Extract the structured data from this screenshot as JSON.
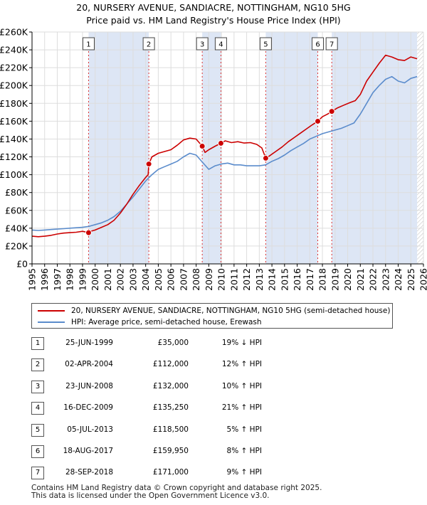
{
  "chart_data": {
    "type": "line",
    "title": [
      "20, NURSERY AVENUE, SANDIACRE, NOTTINGHAM, NG10 5HG",
      "Price paid vs. HM Land Registry's House Price Index (HPI)"
    ],
    "xlim": [
      1995,
      2026
    ],
    "ylim": [
      0,
      260000
    ],
    "x_ticks": [
      "1995",
      "1996",
      "1997",
      "1998",
      "1999",
      "2000",
      "2001",
      "2002",
      "2003",
      "2004",
      "2005",
      "2006",
      "2007",
      "2008",
      "2009",
      "2010",
      "2011",
      "2012",
      "2013",
      "2014",
      "2015",
      "2016",
      "2017",
      "2018",
      "2019",
      "2020",
      "2021",
      "2022",
      "2023",
      "2024",
      "2025",
      "2026"
    ],
    "y_ticks": [
      {
        "value": 0,
        "label": "£0"
      },
      {
        "value": 20000,
        "label": "£20K"
      },
      {
        "value": 40000,
        "label": "£40K"
      },
      {
        "value": 60000,
        "label": "£60K"
      },
      {
        "value": 80000,
        "label": "£80K"
      },
      {
        "value": 100000,
        "label": "£100K"
      },
      {
        "value": 120000,
        "label": "£120K"
      },
      {
        "value": 140000,
        "label": "£140K"
      },
      {
        "value": 160000,
        "label": "£160K"
      },
      {
        "value": 180000,
        "label": "£180K"
      },
      {
        "value": 200000,
        "label": "£200K"
      },
      {
        "value": 220000,
        "label": "£220K"
      },
      {
        "value": 240000,
        "label": "£240K"
      },
      {
        "value": 260000,
        "label": "£260K"
      }
    ],
    "colors": {
      "property": "#cc0000",
      "hpi": "#5b8ccc",
      "shade": "#dde6f5",
      "grid": "#dddddd"
    },
    "shaded_ranges": [
      [
        1999.48,
        2004.25
      ],
      [
        2008.48,
        2009.96
      ],
      [
        2013.51,
        2017.63
      ],
      [
        2018.74,
        2025.5
      ]
    ],
    "future_hatch_from": 2025.5,
    "sales": [
      {
        "n": "1",
        "x": 1999.48,
        "y": 35000
      },
      {
        "n": "2",
        "x": 2004.25,
        "y": 112000
      },
      {
        "n": "3",
        "x": 2008.48,
        "y": 132000
      },
      {
        "n": "4",
        "x": 2009.96,
        "y": 135250
      },
      {
        "n": "5",
        "x": 2013.51,
        "y": 118500
      },
      {
        "n": "6",
        "x": 2017.63,
        "y": 159950
      },
      {
        "n": "7",
        "x": 2018.74,
        "y": 171000
      }
    ],
    "series": [
      {
        "name": "20, NURSERY AVENUE, SANDIACRE, NOTTINGHAM, NG10 5HG (semi-detached house)",
        "color": "#cc0000",
        "x": [
          1995,
          1995.5,
          1996,
          1996.5,
          1997,
          1997.5,
          1998,
          1998.5,
          1999,
          1999.48,
          1999.5,
          2000,
          2000.5,
          2001,
          2001.5,
          2002,
          2002.5,
          2003,
          2003.5,
          2004,
          2004.2,
          2004.25,
          2004.5,
          2005,
          2005.5,
          2006,
          2006.5,
          2007,
          2007.5,
          2008,
          2008.48,
          2008.7,
          2009,
          2009.5,
          2009.96,
          2010.3,
          2010.8,
          2011.3,
          2011.8,
          2012.3,
          2012.8,
          2013.2,
          2013.51,
          2013.8,
          2014.3,
          2014.8,
          2015.3,
          2015.8,
          2016.3,
          2016.8,
          2017.2,
          2017.63,
          2018,
          2018.4,
          2018.74,
          2019.2,
          2019.7,
          2020.2,
          2020.6,
          2021,
          2021.5,
          2022,
          2022.5,
          2023,
          2023.5,
          2024,
          2024.5,
          2025,
          2025.5
        ],
        "y": [
          31000,
          30500,
          31000,
          32000,
          33500,
          34500,
          35000,
          35500,
          36500,
          35000,
          36000,
          38000,
          41000,
          44000,
          49000,
          57000,
          67000,
          78000,
          88000,
          97000,
          100000,
          112000,
          120000,
          124000,
          126000,
          128000,
          133000,
          139000,
          141000,
          140000,
          132000,
          125000,
          128000,
          132000,
          135250,
          138000,
          136000,
          137000,
          135500,
          136000,
          134000,
          130000,
          118500,
          121000,
          126000,
          131000,
          137000,
          142000,
          147000,
          152000,
          156000,
          159950,
          165000,
          168000,
          171000,
          175000,
          178000,
          181000,
          183000,
          190000,
          205000,
          215000,
          225000,
          234000,
          232000,
          229000,
          228000,
          232000,
          230000
        ]
      },
      {
        "name": "HPI: Average price, semi-detached house, Erewash",
        "color": "#5b8ccc",
        "x": [
          1995,
          1995.5,
          1996,
          1996.5,
          1997,
          1997.5,
          1998,
          1998.5,
          1999,
          1999.5,
          2000,
          2000.5,
          2001,
          2001.5,
          2002,
          2002.5,
          2003,
          2003.5,
          2004,
          2004.5,
          2005,
          2005.5,
          2006,
          2006.5,
          2007,
          2007.5,
          2008,
          2008.5,
          2009,
          2009.5,
          2010,
          2010.5,
          2011,
          2011.5,
          2012,
          2012.5,
          2013,
          2013.5,
          2014,
          2014.5,
          2015,
          2015.5,
          2016,
          2016.5,
          2017,
          2017.5,
          2018,
          2018.5,
          2019,
          2019.5,
          2020,
          2020.5,
          2021,
          2021.5,
          2022,
          2022.5,
          2023,
          2023.5,
          2024,
          2024.5,
          2025,
          2025.5
        ],
        "y": [
          38000,
          37500,
          38000,
          38500,
          39000,
          39500,
          40000,
          40500,
          41000,
          42000,
          44000,
          46000,
          49000,
          53000,
          59000,
          67000,
          75000,
          84000,
          93000,
          100000,
          106000,
          109000,
          112000,
          115000,
          120000,
          124000,
          122000,
          114000,
          106000,
          110000,
          112000,
          113000,
          111000,
          111000,
          110000,
          110000,
          110000,
          111000,
          115000,
          118000,
          122000,
          127000,
          131000,
          135000,
          140000,
          143000,
          146000,
          148000,
          150000,
          152000,
          155000,
          158000,
          168000,
          180000,
          192000,
          200000,
          207000,
          210000,
          205000,
          203000,
          208000,
          210000
        ]
      }
    ],
    "legend": [
      "20, NURSERY AVENUE, SANDIACRE, NOTTINGHAM, NG10 5HG (semi-detached house)",
      "HPI: Average price, semi-detached house, Erewash"
    ]
  },
  "table": [
    {
      "n": "1",
      "date": "25-JUN-1999",
      "price": "£35,000",
      "hpi": "19% ↓ HPI"
    },
    {
      "n": "2",
      "date": "02-APR-2004",
      "price": "£112,000",
      "hpi": "12% ↑ HPI"
    },
    {
      "n": "3",
      "date": "23-JUN-2008",
      "price": "£132,000",
      "hpi": "10% ↑ HPI"
    },
    {
      "n": "4",
      "date": "16-DEC-2009",
      "price": "£135,250",
      "hpi": "21% ↑ HPI"
    },
    {
      "n": "5",
      "date": "05-JUL-2013",
      "price": "£118,500",
      "hpi": "5% ↑ HPI"
    },
    {
      "n": "6",
      "date": "18-AUG-2017",
      "price": "£159,950",
      "hpi": "8% ↑ HPI"
    },
    {
      "n": "7",
      "date": "28-SEP-2018",
      "price": "£171,000",
      "hpi": "9% ↑ HPI"
    }
  ],
  "footer": [
    "Contains HM Land Registry data © Crown copyright and database right 2025.",
    "This data is licensed under the Open Government Licence v3.0."
  ]
}
